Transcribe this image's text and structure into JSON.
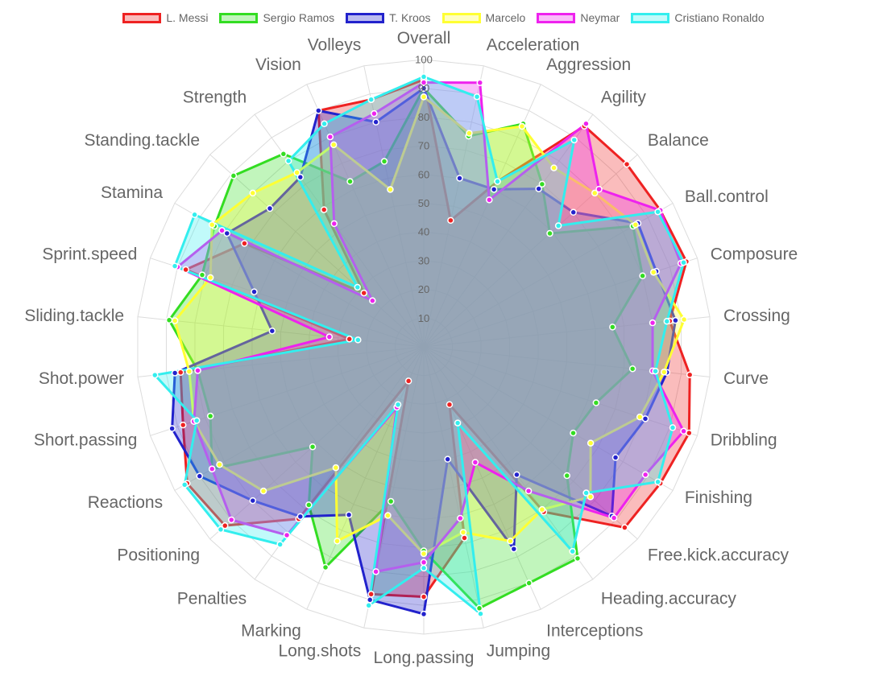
{
  "chart_data": {
    "type": "radar",
    "r_range": [
      0,
      100
    ],
    "ticks": [
      10,
      20,
      30,
      40,
      50,
      60,
      70,
      80,
      90,
      100
    ],
    "grid": true,
    "legend_position": "top",
    "axes": [
      "Overall",
      "Acceleration",
      "Aggression",
      "Agility",
      "Balance",
      "Ball.control",
      "Composure",
      "Crossing",
      "Curve",
      "Dribbling",
      "Finishing",
      "Free.kick.accuracy",
      "Heading.accuracy",
      "Interceptions",
      "Jumping",
      "Long.passing",
      "Long.shots",
      "Marking",
      "Penalties",
      "Positioning",
      "Reactions",
      "Short.passing",
      "Shot.power",
      "Sliding.tackle",
      "Sprint.speed",
      "Stamina",
      "Standing.tackle",
      "Strength",
      "Vision",
      "Volleys"
    ],
    "series": [
      {
        "name": "L. Messi",
        "color": "#ee2222",
        "fill": "rgba(238,34,34,0.30)",
        "values": [
          93,
          45,
          63,
          95,
          95,
          95,
          96,
          86,
          93,
          97,
          95,
          94,
          71,
          22,
          68,
          87,
          88,
          13,
          74,
          93,
          95,
          88,
          85,
          26,
          87,
          72,
          28,
          59,
          90,
          88
        ]
      },
      {
        "name": "Sergio Ramos",
        "color": "#33dd22",
        "fill": "rgba(51,221,34,0.30)",
        "values": [
          90,
          75,
          85,
          70,
          59,
          84,
          80,
          66,
          73,
          63,
          60,
          67,
          91,
          90,
          93,
          71,
          55,
          84,
          68,
          52,
          85,
          78,
          79,
          89,
          81,
          84,
          89,
          83,
          63,
          66
        ]
      },
      {
        "name": "T. Kroos",
        "color": "#2222cc",
        "fill": "rgba(34,34,204,0.30)",
        "values": [
          90,
          60,
          60,
          68,
          70,
          86,
          85,
          88,
          85,
          81,
          77,
          88,
          55,
          77,
          40,
          93,
          90,
          64,
          73,
          80,
          90,
          92,
          87,
          53,
          62,
          79,
          72,
          73,
          90,
          80
        ]
      },
      {
        "name": "Marcelo",
        "color": "#ffff33",
        "fill": "rgba(255,255,51,0.30)",
        "values": [
          87,
          76,
          84,
          77,
          80,
          85,
          84,
          91,
          84,
          79,
          67,
          78,
          70,
          74,
          66,
          72,
          60,
          74,
          52,
          75,
          82,
          84,
          82,
          87,
          78,
          85,
          80,
          75,
          77,
          56
        ]
      },
      {
        "name": "Neymar",
        "color": "#ee22ee",
        "fill": "rgba(238,34,238,0.30)",
        "values": [
          92,
          94,
          56,
          96,
          82,
          95,
          94,
          80,
          80,
          95,
          89,
          89,
          62,
          44,
          61,
          75,
          80,
          23,
          81,
          90,
          85,
          84,
          79,
          33,
          90,
          81,
          24,
          53,
          80,
          83
        ]
      },
      {
        "name": "Cristiano Ronaldo",
        "color": "#33eeee",
        "fill": "rgba(51,238,238,0.30)",
        "values": [
          94,
          89,
          63,
          89,
          63,
          94,
          95,
          85,
          81,
          91,
          94,
          76,
          88,
          29,
          95,
          77,
          92,
          22,
          85,
          95,
          96,
          83,
          94,
          23,
          91,
          92,
          31,
          80,
          85,
          88
        ]
      }
    ]
  }
}
